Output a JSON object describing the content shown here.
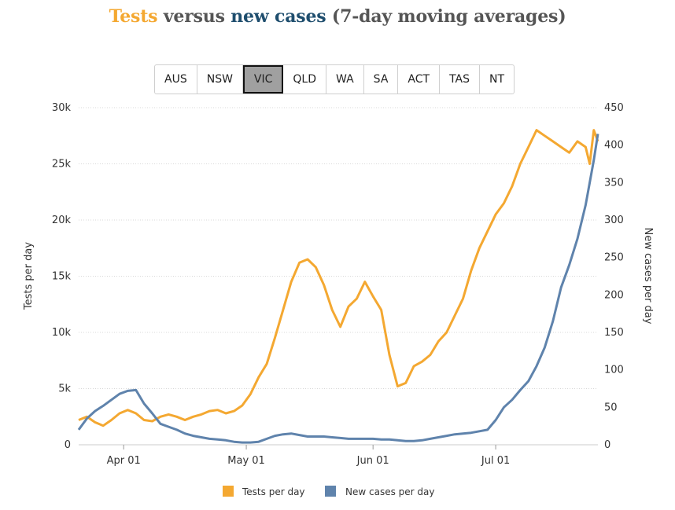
{
  "title": {
    "part1": "Tests",
    "part2": " versus ",
    "part3": "new cases",
    "part4": " (7-day moving averages)"
  },
  "tabs": [
    {
      "label": "AUS"
    },
    {
      "label": "NSW"
    },
    {
      "label": "VIC"
    },
    {
      "label": "QLD"
    },
    {
      "label": "WA"
    },
    {
      "label": "SA"
    },
    {
      "label": "ACT"
    },
    {
      "label": "TAS"
    },
    {
      "label": "NT"
    }
  ],
  "active_tab": "VIC",
  "colors": {
    "tests": "#f4a831",
    "cases": "#5f83ac"
  },
  "chart_data": {
    "type": "line",
    "title": "Tests versus new cases (7-day moving averages)",
    "ylabel_left": "Tests per day",
    "ylabel_right": "New cases per day",
    "ylim_left": [
      0,
      30000
    ],
    "ylim_right": [
      0,
      450
    ],
    "yticks_left": [
      0,
      5000,
      10000,
      15000,
      20000,
      25000,
      30000
    ],
    "yticks_left_labels": [
      "0",
      "5k",
      "10k",
      "15k",
      "20k",
      "25k",
      "30k"
    ],
    "yticks_right": [
      0,
      50,
      100,
      150,
      200,
      250,
      300,
      350,
      400,
      450
    ],
    "yticks_right_labels": [
      "0",
      "50",
      "100",
      "150",
      "200",
      "250",
      "300",
      "350",
      "400",
      "450"
    ],
    "xlim": [
      "2020-03-21",
      "2020-07-26"
    ],
    "xticks": [
      "2020-04-01",
      "2020-05-01",
      "2020-06-01",
      "2020-07-01"
    ],
    "xtick_labels": [
      "Apr 01",
      "May 01",
      "Jun 01",
      "Jul 01"
    ],
    "grid": true,
    "legend_position": "bottom-center",
    "series": [
      {
        "name": "Tests per day",
        "axis": "left",
        "x": [
          "2020-03-21",
          "2020-03-23",
          "2020-03-25",
          "2020-03-27",
          "2020-03-29",
          "2020-03-31",
          "2020-04-02",
          "2020-04-04",
          "2020-04-06",
          "2020-04-08",
          "2020-04-10",
          "2020-04-12",
          "2020-04-14",
          "2020-04-16",
          "2020-04-18",
          "2020-04-20",
          "2020-04-22",
          "2020-04-24",
          "2020-04-26",
          "2020-04-28",
          "2020-04-30",
          "2020-05-02",
          "2020-05-04",
          "2020-05-06",
          "2020-05-08",
          "2020-05-10",
          "2020-05-12",
          "2020-05-14",
          "2020-05-16",
          "2020-05-18",
          "2020-05-20",
          "2020-05-22",
          "2020-05-24",
          "2020-05-26",
          "2020-05-28",
          "2020-05-30",
          "2020-06-01",
          "2020-06-03",
          "2020-06-05",
          "2020-06-07",
          "2020-06-09",
          "2020-06-11",
          "2020-06-13",
          "2020-06-15",
          "2020-06-17",
          "2020-06-19",
          "2020-06-21",
          "2020-06-23",
          "2020-06-25",
          "2020-06-27",
          "2020-06-29",
          "2020-07-01",
          "2020-07-03",
          "2020-07-05",
          "2020-07-07",
          "2020-07-09",
          "2020-07-11",
          "2020-07-13",
          "2020-07-15",
          "2020-07-17",
          "2020-07-19",
          "2020-07-21",
          "2020-07-23",
          "2020-07-24",
          "2020-07-25",
          "2020-07-26"
        ],
        "values": [
          2200,
          2500,
          2000,
          1700,
          2200,
          2800,
          3100,
          2800,
          2200,
          2100,
          2500,
          2700,
          2500,
          2200,
          2500,
          2700,
          3000,
          3100,
          2800,
          3000,
          3500,
          4500,
          6000,
          7200,
          9500,
          12000,
          14500,
          16200,
          16500,
          15800,
          14200,
          12000,
          10500,
          12300,
          13000,
          14500,
          13200,
          12000,
          8000,
          5200,
          5500,
          7000,
          7400,
          8000,
          9200,
          10000,
          11500,
          13000,
          15500,
          17500,
          19000,
          20500,
          21500,
          23000,
          25000,
          26500,
          28000,
          27500,
          27000,
          26500,
          26000,
          27000,
          26500,
          25000,
          28000,
          27000
        ]
      },
      {
        "name": "New cases per day",
        "axis": "right",
        "x": [
          "2020-03-21",
          "2020-03-23",
          "2020-03-25",
          "2020-03-27",
          "2020-03-29",
          "2020-03-31",
          "2020-04-02",
          "2020-04-04",
          "2020-04-06",
          "2020-04-08",
          "2020-04-10",
          "2020-04-12",
          "2020-04-14",
          "2020-04-16",
          "2020-04-18",
          "2020-04-20",
          "2020-04-22",
          "2020-04-24",
          "2020-04-26",
          "2020-04-28",
          "2020-04-30",
          "2020-05-02",
          "2020-05-04",
          "2020-05-06",
          "2020-05-08",
          "2020-05-10",
          "2020-05-12",
          "2020-05-14",
          "2020-05-16",
          "2020-05-18",
          "2020-05-20",
          "2020-05-22",
          "2020-05-24",
          "2020-05-26",
          "2020-05-28",
          "2020-05-30",
          "2020-06-01",
          "2020-06-03",
          "2020-06-05",
          "2020-06-07",
          "2020-06-09",
          "2020-06-11",
          "2020-06-13",
          "2020-06-15",
          "2020-06-17",
          "2020-06-19",
          "2020-06-21",
          "2020-06-23",
          "2020-06-25",
          "2020-06-27",
          "2020-06-29",
          "2020-07-01",
          "2020-07-03",
          "2020-07-05",
          "2020-07-07",
          "2020-07-09",
          "2020-07-11",
          "2020-07-13",
          "2020-07-15",
          "2020-07-17",
          "2020-07-19",
          "2020-07-21",
          "2020-07-23",
          "2020-07-24",
          "2020-07-25",
          "2020-07-26"
        ],
        "values": [
          20,
          35,
          45,
          52,
          60,
          68,
          72,
          73,
          55,
          42,
          28,
          24,
          20,
          15,
          12,
          10,
          8,
          7,
          6,
          4,
          3,
          3,
          4,
          8,
          12,
          14,
          15,
          13,
          11,
          11,
          11,
          10,
          9,
          8,
          8,
          8,
          8,
          7,
          7,
          6,
          5,
          5,
          6,
          8,
          10,
          12,
          14,
          15,
          16,
          18,
          20,
          33,
          50,
          60,
          73,
          85,
          105,
          130,
          165,
          210,
          240,
          275,
          320,
          350,
          380,
          415
        ]
      }
    ]
  }
}
